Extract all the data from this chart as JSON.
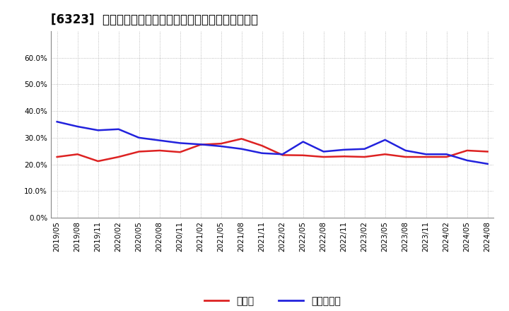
{
  "title": "[6323]  現预金、有利子負債の総資産に対する比率の推移",
  "x_labels": [
    "2019/05",
    "2019/08",
    "2019/11",
    "2020/02",
    "2020/05",
    "2020/08",
    "2020/11",
    "2021/02",
    "2021/05",
    "2021/08",
    "2021/11",
    "2022/02",
    "2022/05",
    "2022/08",
    "2022/11",
    "2023/02",
    "2023/05",
    "2023/08",
    "2023/11",
    "2024/02",
    "2024/05",
    "2024/08"
  ],
  "cash": [
    0.228,
    0.238,
    0.212,
    0.228,
    0.248,
    0.252,
    0.246,
    0.274,
    0.278,
    0.296,
    0.27,
    0.235,
    0.234,
    0.228,
    0.23,
    0.228,
    0.238,
    0.228,
    0.228,
    0.228,
    0.252,
    0.248
  ],
  "debt": [
    0.36,
    0.342,
    0.328,
    0.332,
    0.3,
    0.29,
    0.28,
    0.275,
    0.268,
    0.258,
    0.242,
    0.238,
    0.285,
    0.248,
    0.255,
    0.258,
    0.292,
    0.252,
    0.238,
    0.238,
    0.215,
    0.202
  ],
  "cash_color": "#dd2222",
  "debt_color": "#2222dd",
  "legend_cash": "現顄金",
  "legend_debt": "有利子負債",
  "ylim": [
    0.0,
    0.7
  ],
  "yticks": [
    0.0,
    0.1,
    0.2,
    0.3,
    0.4,
    0.5,
    0.6
  ],
  "bg_color": "#ffffff",
  "plot_bg_color": "#ffffff",
  "grid_color": "#aaaaaa",
  "title_fontsize": 12,
  "tick_fontsize": 7.5,
  "legend_fontsize": 10
}
